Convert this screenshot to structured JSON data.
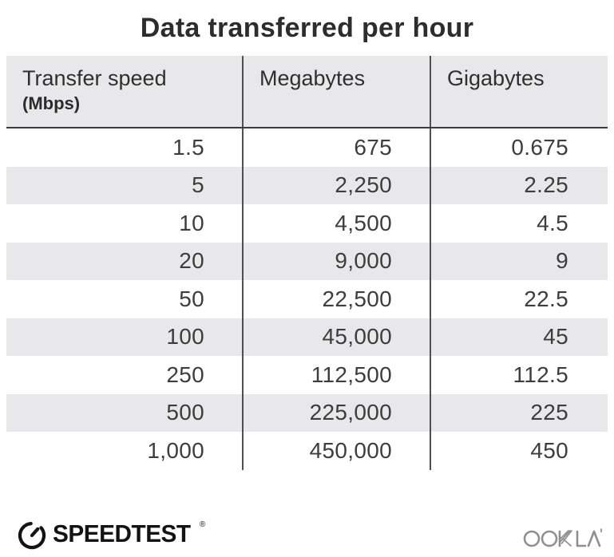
{
  "chart_data": {
    "type": "table",
    "title": "Data transferred per hour",
    "columns": [
      {
        "label": "Transfer speed",
        "sublabel": "(Mbps)"
      },
      {
        "label": "Megabytes",
        "sublabel": ""
      },
      {
        "label": "Gigabytes",
        "sublabel": ""
      }
    ],
    "rows": [
      [
        "1.5",
        "675",
        "0.675"
      ],
      [
        "5",
        "2,250",
        "2.25"
      ],
      [
        "10",
        "4,500",
        "4.5"
      ],
      [
        "20",
        "9,000",
        "9"
      ],
      [
        "50",
        "22,500",
        "22.5"
      ],
      [
        "100",
        "45,000",
        "45"
      ],
      [
        "250",
        "112,500",
        "112.5"
      ],
      [
        "500",
        "225,000",
        "225"
      ],
      [
        "1,000",
        "450,000",
        "450"
      ]
    ],
    "layout": {
      "stripe_pattern": "odd rows white, even rows gray",
      "value_alignment": "right"
    }
  },
  "footer": {
    "speedtest_label": "SPEEDTEST",
    "speedtest_trademark": "®",
    "ookla_label": "OOKLA",
    "icons": {
      "gauge": "speedtest-gauge-icon",
      "wordmark": "ookla-wordmark-icon"
    }
  },
  "colors": {
    "background": "#ffffff",
    "stripe_gray": "#e8e8eb",
    "title_text": "#2d2d2d",
    "cell_text": "#3d3d3d",
    "divider": "#4f4f4f",
    "header_underline": "#3b3b3b",
    "speedtest_black": "#131313",
    "ookla_gray": "#8f8f8f"
  }
}
